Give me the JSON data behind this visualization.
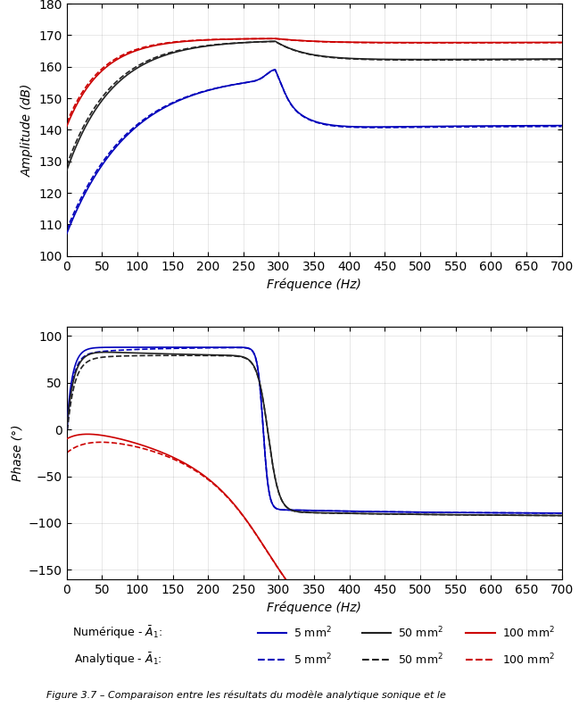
{
  "freq_min": 0,
  "freq_max": 700,
  "amp_ylim": [
    100,
    180
  ],
  "amp_yticks": [
    100,
    110,
    120,
    130,
    140,
    150,
    160,
    170,
    180
  ],
  "phase_ylim": [
    -160,
    110
  ],
  "phase_yticks": [
    -150,
    -100,
    -50,
    0,
    50,
    100
  ],
  "xticks": [
    0,
    50,
    100,
    150,
    200,
    250,
    300,
    350,
    400,
    450,
    500,
    550,
    600,
    650,
    700
  ],
  "xlabel": "Fréquence (Hz)",
  "ylabel_amp": "Amplitude (dB)",
  "ylabel_phase": "Phase (°)",
  "color_5": "#0000bb",
  "color_50": "#222222",
  "color_100": "#cc0000",
  "legend_num_label": "Numérique - $\\bar{A}_1$:",
  "legend_ana_label": "Analytique - $\\bar{A}_1$:",
  "legend_5": "5 mm$^2$",
  "legend_50": "50 mm$^2$",
  "legend_100": "100 mm$^2$",
  "caption": "Figure 3.7 – Comparaison entre les résultats du modèle analytique sonique et le"
}
